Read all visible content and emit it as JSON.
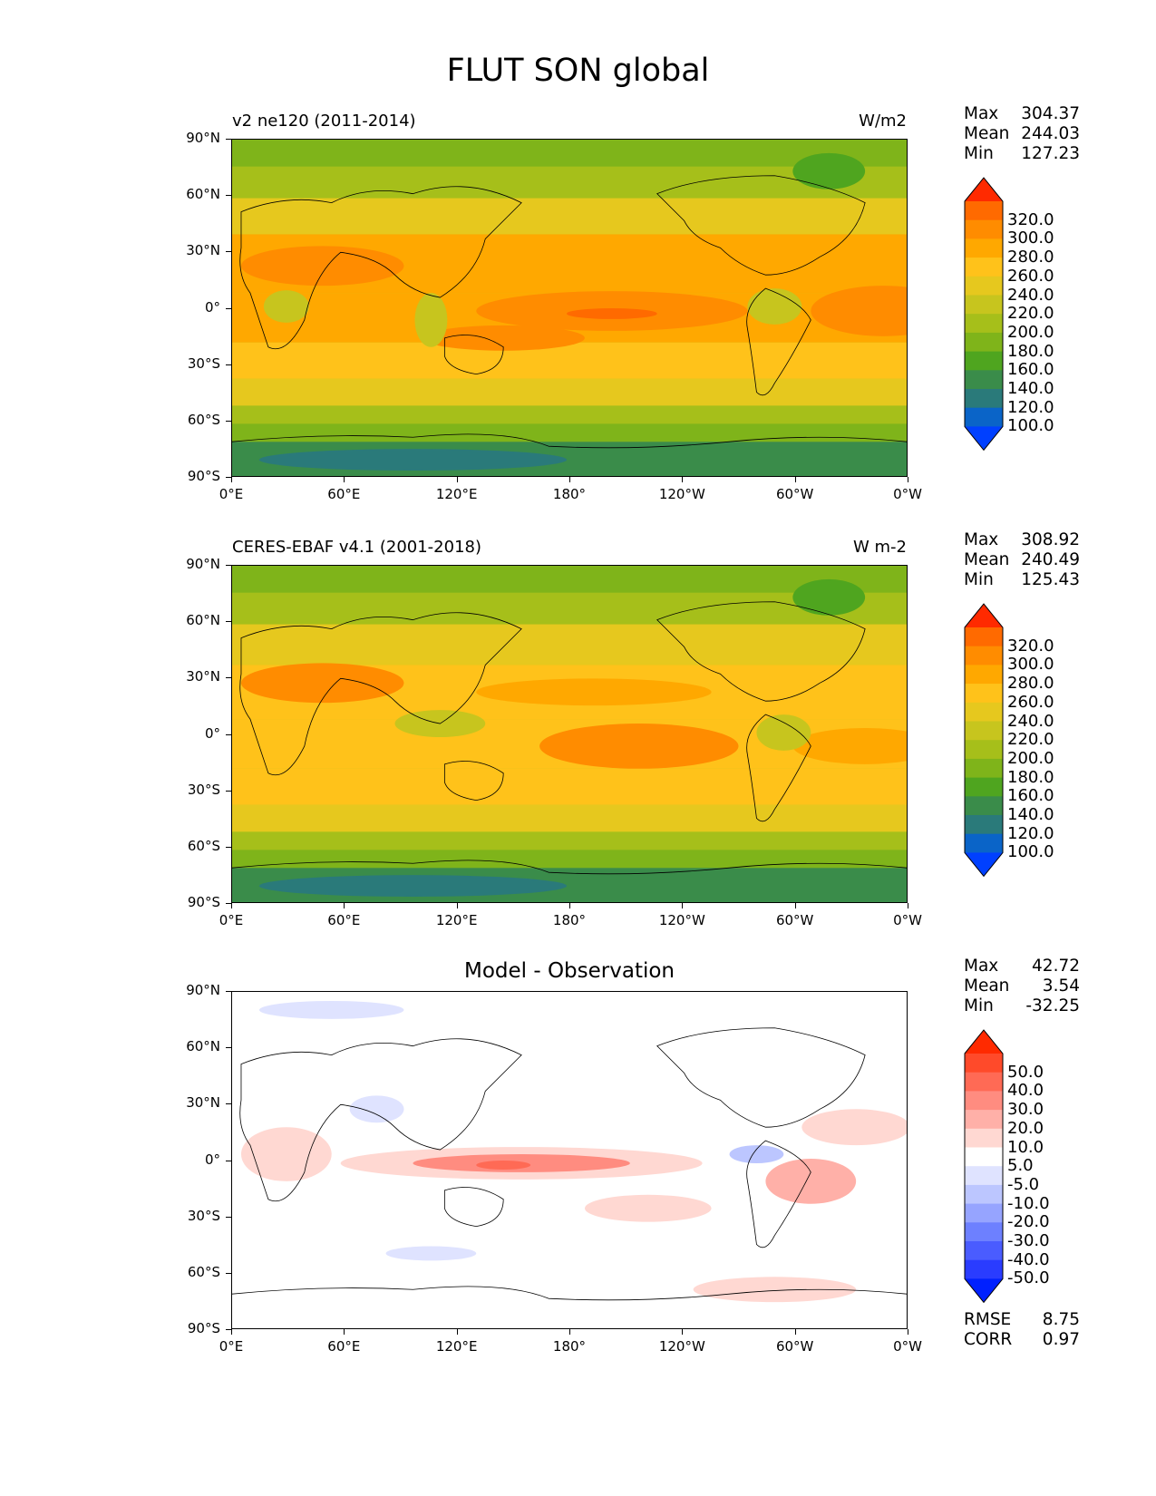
{
  "figure": {
    "title": "FLUT SON global",
    "lat_ticks": [
      "90°N",
      "60°N",
      "30°N",
      "0°",
      "30°S",
      "60°S",
      "90°S"
    ],
    "lon_ticks": [
      "0°E",
      "60°E",
      "120°E",
      "180°",
      "120°W",
      "60°W",
      "0°W"
    ]
  },
  "panels": [
    {
      "id": "model",
      "title": "v2 ne120 (2011-2014)",
      "units": "W/m2",
      "stats": {
        "max_label": "Max",
        "max": "304.37",
        "mean_label": "Mean",
        "mean": "244.03",
        "min_label": "Min",
        "min": "127.23"
      },
      "colorbar": {
        "labels": [
          "320.0",
          "300.0",
          "280.0",
          "260.0",
          "240.0",
          "220.0",
          "200.0",
          "180.0",
          "160.0",
          "140.0",
          "120.0",
          "100.0"
        ],
        "colors": [
          "#ff2a00",
          "#ff6a00",
          "#ff8c00",
          "#ffa800",
          "#ffc21a",
          "#e6c81e",
          "#c7c51e",
          "#a6bf1a",
          "#7fb41a",
          "#4fa51f",
          "#3a8c4a",
          "#2a7a7a",
          "#0a64c8",
          "#0040ff"
        ]
      }
    },
    {
      "id": "obs",
      "title": "CERES-EBAF v4.1 (2001-2018)",
      "units": "W m-2",
      "stats": {
        "max_label": "Max",
        "max": "308.92",
        "mean_label": "Mean",
        "mean": "240.49",
        "min_label": "Min",
        "min": "125.43"
      },
      "colorbar": {
        "labels": [
          "320.0",
          "300.0",
          "280.0",
          "260.0",
          "240.0",
          "220.0",
          "200.0",
          "180.0",
          "160.0",
          "140.0",
          "120.0",
          "100.0"
        ],
        "colors": [
          "#ff2a00",
          "#ff6a00",
          "#ff8c00",
          "#ffa800",
          "#ffc21a",
          "#e6c81e",
          "#c7c51e",
          "#a6bf1a",
          "#7fb41a",
          "#4fa51f",
          "#3a8c4a",
          "#2a7a7a",
          "#0a64c8",
          "#0040ff"
        ]
      }
    },
    {
      "id": "diff",
      "title": "Model - Observation",
      "units": "",
      "stats": {
        "max_label": "Max",
        "max": "42.72",
        "mean_label": "Mean",
        "mean": "3.54",
        "min_label": "Min",
        "min": "-32.25"
      },
      "colorbar": {
        "labels": [
          "50.0",
          "40.0",
          "30.0",
          "20.0",
          "10.0",
          "5.0",
          "-5.0",
          "-10.0",
          "-20.0",
          "-30.0",
          "-40.0",
          "-50.0"
        ],
        "colors": [
          "#ff2a00",
          "#ff4a2a",
          "#ff6a55",
          "#ff8c80",
          "#ffb0a8",
          "#ffd8d2",
          "#ffffff",
          "#dfe3ff",
          "#bcc6ff",
          "#96a4ff",
          "#6d80ff",
          "#4a5cff",
          "#2a3cff",
          "#0020ff"
        ]
      },
      "metrics": {
        "rmse_label": "RMSE",
        "rmse": "8.75",
        "corr_label": "CORR",
        "corr": "0.97"
      }
    }
  ]
}
